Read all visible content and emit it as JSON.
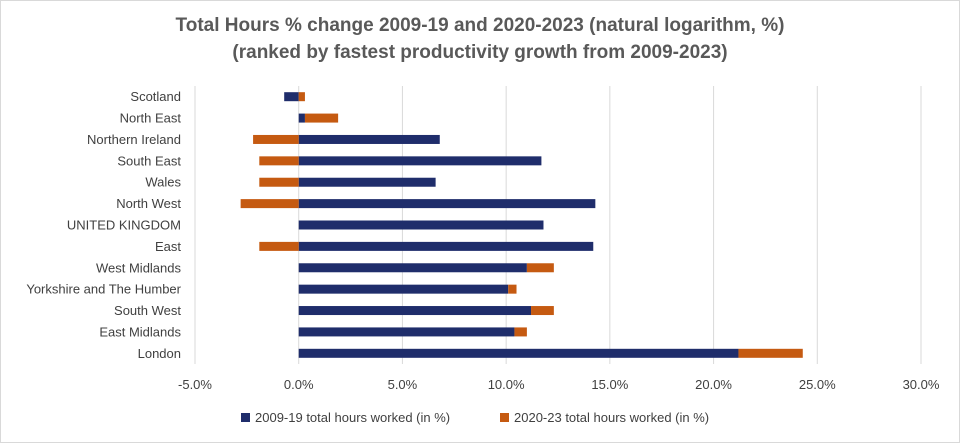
{
  "chart_data": {
    "type": "bar",
    "orientation": "horizontal",
    "stacked": true,
    "title": "Total Hours % change 2009-19 and 2020-2023 (natural logarithm, %)",
    "subtitle": "(ranked by fastest productivity growth from 2009-2023)",
    "categories": [
      "Scotland",
      "North East",
      "Northern Ireland",
      "South East",
      "Wales",
      "North West",
      "UNITED KINGDOM",
      "East",
      "West Midlands",
      "Yorkshire and The Humber",
      "South West",
      "East Midlands",
      "London"
    ],
    "series": [
      {
        "name": "2009-19 total hours worked (in %)",
        "color": "#1f2d6b",
        "values": [
          -0.7,
          0.3,
          6.8,
          11.7,
          6.6,
          14.3,
          11.8,
          14.2,
          11.0,
          10.1,
          11.2,
          10.4,
          21.2
        ]
      },
      {
        "name": "2020-23 total hours worked (in %)",
        "color": "#c55a11",
        "values": [
          0.3,
          1.6,
          -2.2,
          -1.9,
          -1.9,
          -2.8,
          0.0,
          -1.9,
          1.3,
          0.4,
          1.1,
          0.6,
          3.1
        ]
      }
    ],
    "xlim": [
      -5,
      30
    ],
    "xticks": [
      "-5.0%",
      "0.0%",
      "5.0%",
      "10.0%",
      "15.0%",
      "20.0%",
      "25.0%",
      "30.0%"
    ],
    "grid": true,
    "legend_position": "bottom"
  }
}
